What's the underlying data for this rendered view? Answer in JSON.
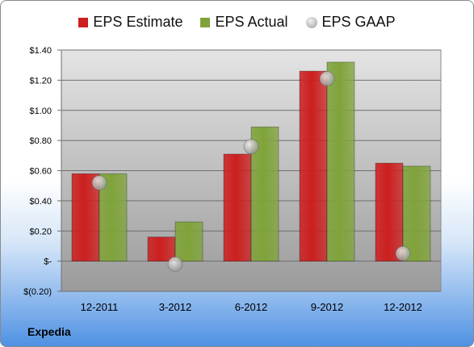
{
  "company": "Expedia",
  "chart_data": {
    "type": "bar",
    "categories": [
      "12-2011",
      "3-2012",
      "6-2012",
      "9-2012",
      "12-2012"
    ],
    "series": [
      {
        "name": "EPS Estimate",
        "type": "bar",
        "color": "#cc1f1f",
        "values": [
          0.58,
          0.16,
          0.71,
          1.26,
          0.65
        ]
      },
      {
        "name": "EPS Actual",
        "type": "bar",
        "color": "#7fa33a",
        "values": [
          0.58,
          0.26,
          0.89,
          1.32,
          0.63
        ]
      },
      {
        "name": "EPS GAAP",
        "type": "scatter",
        "color": "#9e9e9e",
        "values": [
          0.52,
          -0.02,
          0.76,
          1.21,
          0.05
        ]
      }
    ],
    "yticks": [
      -0.2,
      0,
      0.2,
      0.4,
      0.6,
      0.8,
      1.0,
      1.2,
      1.4
    ],
    "ytick_labels": [
      "$(0.20)",
      "$-",
      "$0.20",
      "$0.40",
      "$0.60",
      "$0.80",
      "$1.00",
      "$1.20",
      "$1.40"
    ],
    "ylim": [
      -0.2,
      1.4
    ],
    "grid": true,
    "legend_position": "top"
  }
}
